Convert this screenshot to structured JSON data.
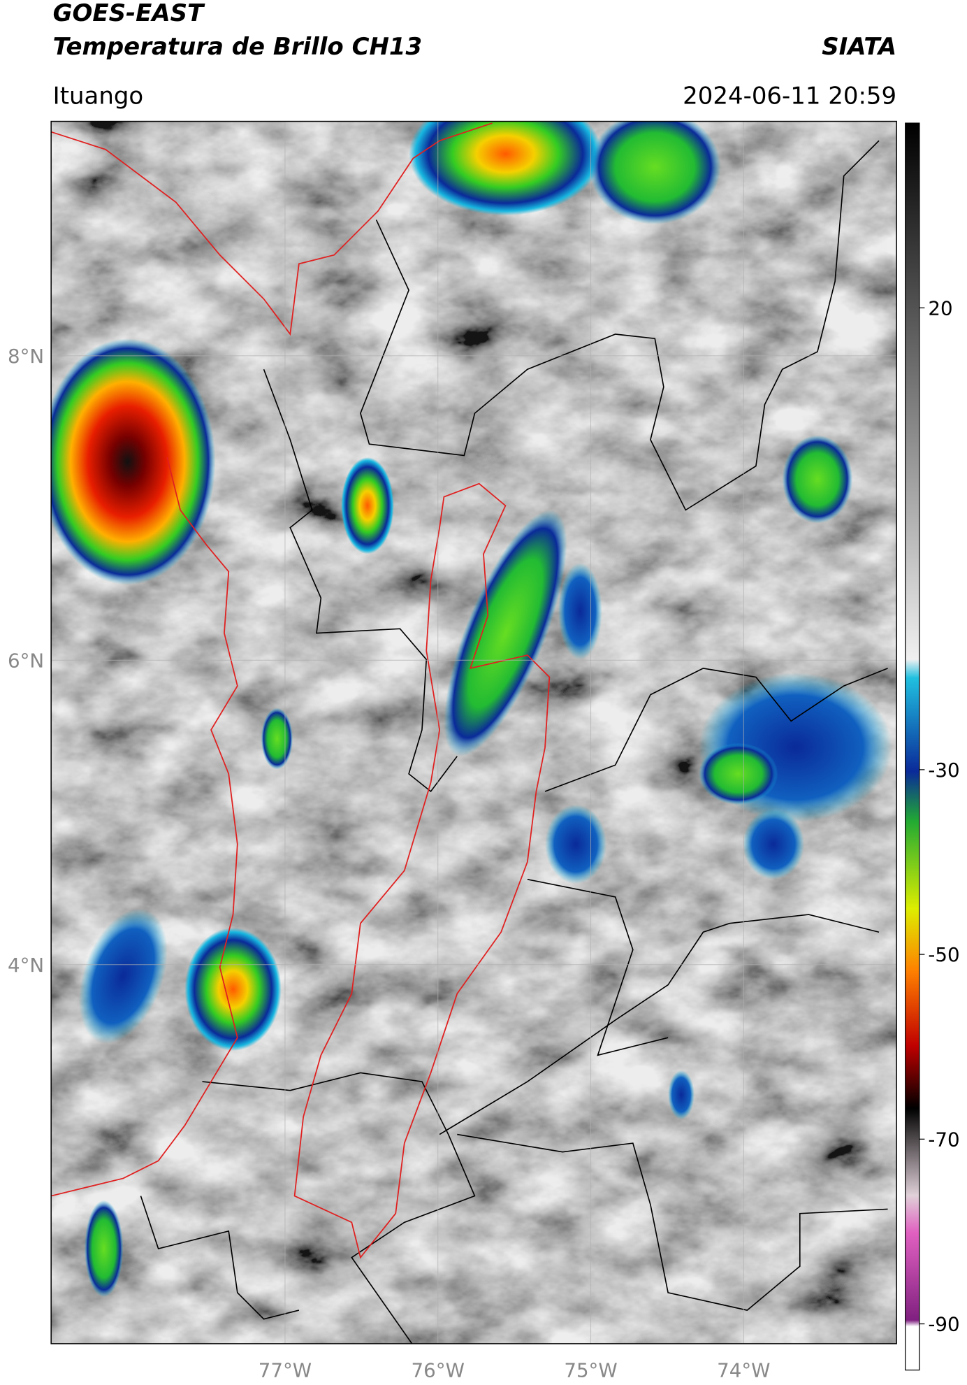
{
  "header": {
    "title": "GOES-EAST",
    "subtitle": "Temperatura de Brillo CH13",
    "source": "SIATA",
    "location": "Ituango",
    "timestamp": "2024-06-11 20:59"
  },
  "map": {
    "xlim": [
      -78.53,
      -73.0
    ],
    "ylim": [
      1.51,
      9.54
    ],
    "xticks": [
      {
        "value": -77,
        "label": "77°W"
      },
      {
        "value": -76,
        "label": "76°W"
      },
      {
        "value": -75,
        "label": "75°W"
      },
      {
        "value": -74,
        "label": "74°W"
      }
    ],
    "yticks": [
      {
        "value": 8,
        "label": "8°N"
      },
      {
        "value": 6,
        "label": "6°N"
      },
      {
        "value": 4,
        "label": "4°N"
      }
    ],
    "grid": true
  },
  "colorbar": {
    "clim": [
      -95,
      40
    ],
    "ticks": [
      20,
      -30,
      -50,
      -70,
      -90
    ]
  }
}
